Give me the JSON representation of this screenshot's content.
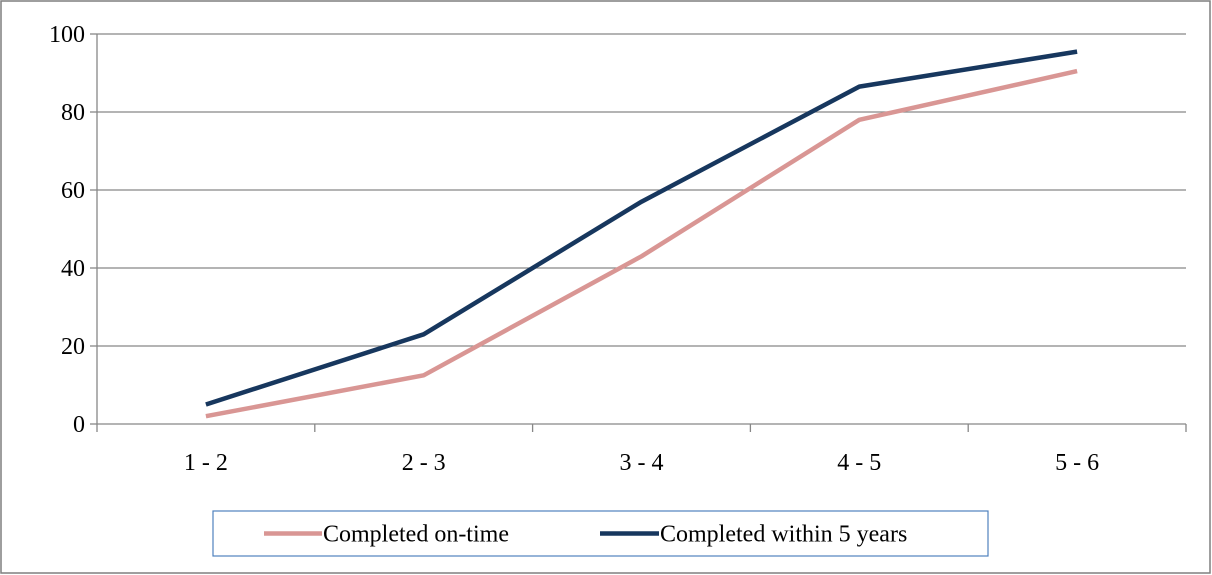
{
  "chart_data": {
    "type": "line",
    "title": "",
    "xlabel": "",
    "ylabel": "",
    "categories": [
      "1 - 2",
      "2 - 3",
      "3 - 4",
      "4 - 5",
      "5 - 6"
    ],
    "ylim": [
      0,
      100
    ],
    "yticks": [
      0,
      20,
      40,
      60,
      80,
      100
    ],
    "grid": "horizontal",
    "legend": "bottom",
    "series": [
      {
        "name": "Completed on-time",
        "color": "#d99694",
        "values": [
          2,
          12.5,
          43,
          78,
          90.5
        ]
      },
      {
        "name": "Completed within 5 years",
        "color": "#17375e",
        "values": [
          5,
          23,
          57,
          86.5,
          95.5
        ]
      }
    ]
  }
}
